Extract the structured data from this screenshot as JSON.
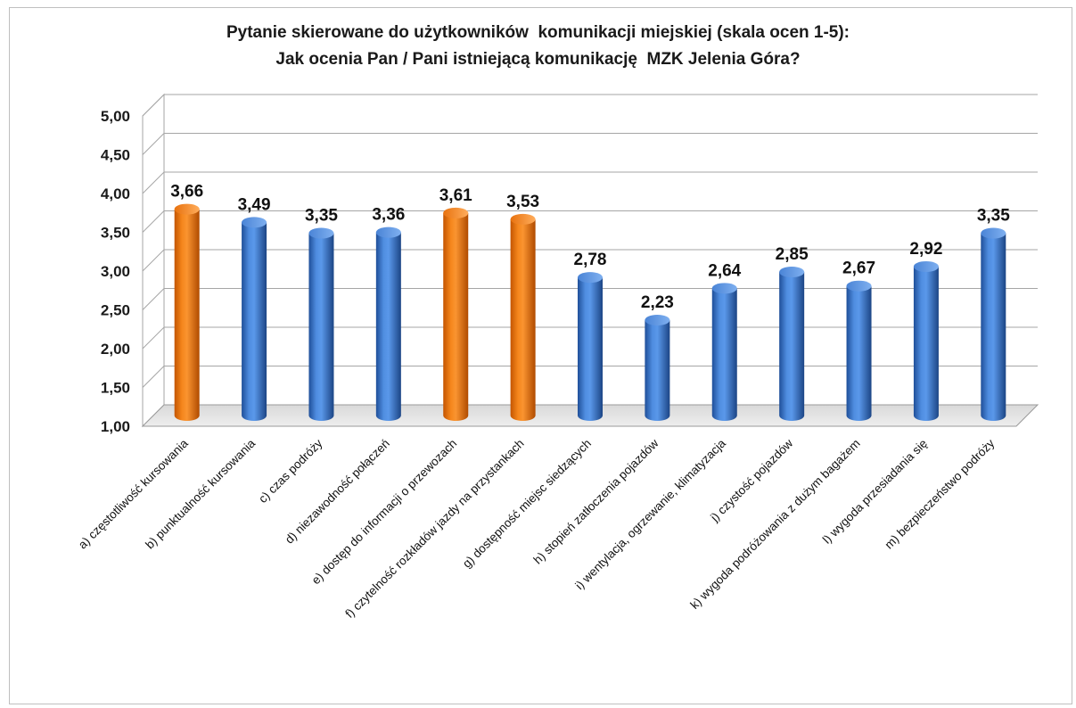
{
  "chart_data": {
    "type": "bar",
    "title": [
      "Pytanie skierowane do użytkowników  komunikacji miejskiej (skala ocen 1-5):",
      "Jak ocenia Pan / Pani istniejącą komunikację  MZK Jelenia Góra?"
    ],
    "categories": [
      "a) częstotliwość kursowania",
      "b) punktualność kursowania",
      "c) czas podróży",
      "d) niezawodność połączeń",
      "e) dostęp do informacji o przewozach",
      "f) czytelność rozkładów jazdy na przystankach",
      "g) dostępność miejsc siedzących",
      "h) stopień zatłoczenia pojazdów",
      "i) wentylacja, ogrzewanie, klimatyzacja",
      "j) czystość pojazdów",
      "k) wygoda podróżowania z dużym bagażem",
      "l) wygoda przesiadania się",
      "m) bezpieczeństwo podróży"
    ],
    "values": [
      3.66,
      3.49,
      3.35,
      3.36,
      3.61,
      3.53,
      2.78,
      2.23,
      2.64,
      2.85,
      2.67,
      2.92,
      3.35
    ],
    "value_labels": [
      "3,66",
      "3,49",
      "3,35",
      "3,36",
      "3,61",
      "3,53",
      "2,78",
      "2,23",
      "2,64",
      "2,85",
      "2,67",
      "2,92",
      "3,35"
    ],
    "highlighted": [
      true,
      false,
      false,
      false,
      true,
      true,
      false,
      false,
      false,
      false,
      false,
      false,
      false
    ],
    "y_ticks": [
      1.0,
      1.5,
      2.0,
      2.5,
      3.0,
      3.5,
      4.0,
      4.5,
      5.0
    ],
    "y_tick_labels": [
      "1,00",
      "1,50",
      "2,00",
      "2,50",
      "3,00",
      "3,50",
      "4,00",
      "4,50",
      "5,00"
    ],
    "ylim": [
      1.0,
      5.0
    ],
    "grid": true,
    "legend": "none",
    "colors": {
      "bar": "#3a6fc0",
      "bar_highlight": "#e8720e",
      "grid": "#a6a6a6"
    }
  }
}
